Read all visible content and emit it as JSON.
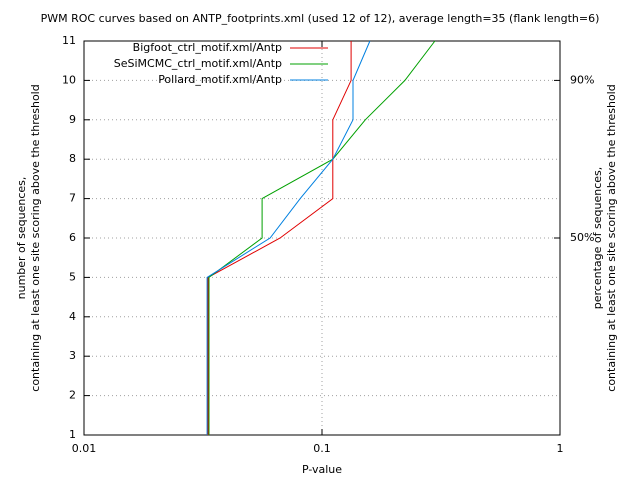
{
  "chart_data": {
    "type": "line",
    "title": "PWM ROC curves based on ANTP_footprints.xml (used 12 of 12), average length=35 (flank length=6)",
    "x_label": "P-value",
    "y_label": [
      "number of sequences,",
      "containing at least one site scoring above the threshold"
    ],
    "y2_label": [
      "percentage of sequences,",
      "containing at least one site scoring above the threshold"
    ],
    "xscale": "log",
    "xlim": [
      0.01,
      1
    ],
    "xticks": [
      0.01,
      0.1,
      1
    ],
    "ylim": [
      1,
      11
    ],
    "yticks": [
      1,
      2,
      3,
      4,
      5,
      6,
      7,
      8,
      9,
      10,
      11
    ],
    "y2lim": [
      0,
      100
    ],
    "y2ticks": [
      {
        "value": 50,
        "label": "50%"
      },
      {
        "value": 90,
        "label": "90%"
      }
    ],
    "grid": true,
    "legend": "top-right",
    "series": [
      {
        "name": "Bigfoot_ctrl_motif.xml/Antp",
        "color": "#e00000",
        "x": [
          0.0332,
          0.0332,
          0.0667,
          0.111,
          0.111,
          0.111,
          0.1325,
          0.1325
        ],
        "values": [
          1,
          5,
          6,
          7,
          8,
          9,
          10,
          11
        ]
      },
      {
        "name": "SeSiMCMC_ctrl_motif.xml/Antp",
        "color": "#00a000",
        "x": [
          0.0335,
          0.0335,
          0.056,
          0.056,
          0.111,
          0.152,
          0.223,
          0.298
        ],
        "values": [
          1,
          5,
          6,
          7,
          8,
          9,
          10,
          11
        ]
      },
      {
        "name": "Pollard_motif.xml/Antp",
        "color": "#0080e0",
        "x": [
          0.0329,
          0.0329,
          0.0605,
          0.081,
          0.111,
          0.135,
          0.135,
          0.159
        ],
        "values": [
          1,
          5,
          6,
          7,
          8,
          9,
          10,
          11
        ]
      }
    ]
  }
}
